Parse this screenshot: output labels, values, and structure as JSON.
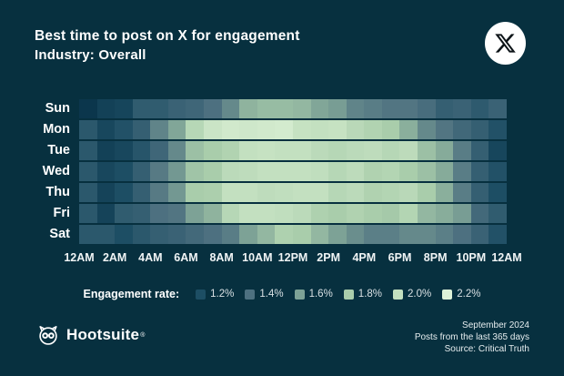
{
  "header": {
    "title": "Best time to post on X for engagement",
    "subtitle": "Industry: Overall",
    "badge_icon": "x-logo-icon"
  },
  "chart_data": {
    "type": "heatmap",
    "title": "Best time to post on X for engagement",
    "subtitle": "Industry: Overall",
    "unit": "engagement rate %",
    "rows": [
      "Sun",
      "Mon",
      "Tue",
      "Wed",
      "Thu",
      "Fri",
      "Sat"
    ],
    "x_tick_labels": [
      "12AM",
      "2AM",
      "4AM",
      "6AM",
      "8AM",
      "10AM",
      "12PM",
      "2PM",
      "4PM",
      "6PM",
      "8PM",
      "10PM",
      "12AM"
    ],
    "columns_per_row": 24,
    "values": [
      [
        1.02,
        1.1,
        1.13,
        1.28,
        1.28,
        1.32,
        1.34,
        1.4,
        1.5,
        1.68,
        1.72,
        1.72,
        1.7,
        1.62,
        1.58,
        1.48,
        1.45,
        1.42,
        1.42,
        1.38,
        1.3,
        1.32,
        1.27,
        1.32
      ],
      [
        1.26,
        1.15,
        1.22,
        1.3,
        1.48,
        1.62,
        1.9,
        2.05,
        2.1,
        2.08,
        2.1,
        2.12,
        2.02,
        2.0,
        2.02,
        1.92,
        1.86,
        1.8,
        1.66,
        1.5,
        1.42,
        1.35,
        1.3,
        1.22
      ],
      [
        1.26,
        1.1,
        1.15,
        1.24,
        1.34,
        1.5,
        1.74,
        1.8,
        1.86,
        2.0,
        2.02,
        2.0,
        2.0,
        1.94,
        1.9,
        1.94,
        1.96,
        1.9,
        1.95,
        1.74,
        1.64,
        1.45,
        1.3,
        1.14
      ],
      [
        1.26,
        1.15,
        1.2,
        1.3,
        1.44,
        1.56,
        1.76,
        1.8,
        1.94,
        1.96,
        2.0,
        2.0,
        2.0,
        1.98,
        1.9,
        1.95,
        1.85,
        1.88,
        1.8,
        1.74,
        1.64,
        1.45,
        1.3,
        1.22
      ],
      [
        1.26,
        1.12,
        1.2,
        1.3,
        1.44,
        1.56,
        1.8,
        1.82,
        2.0,
        2.0,
        1.96,
        1.98,
        2.0,
        2.0,
        1.9,
        1.94,
        1.85,
        1.88,
        1.92,
        1.8,
        1.66,
        1.45,
        1.3,
        1.2
      ],
      [
        1.26,
        1.12,
        1.28,
        1.3,
        1.4,
        1.42,
        1.6,
        1.68,
        1.9,
        2.0,
        2.0,
        1.98,
        1.94,
        1.84,
        1.8,
        1.85,
        1.8,
        1.78,
        1.88,
        1.7,
        1.65,
        1.58,
        1.36,
        1.28
      ],
      [
        1.26,
        1.26,
        1.2,
        1.26,
        1.3,
        1.32,
        1.36,
        1.4,
        1.45,
        1.6,
        1.7,
        1.84,
        1.8,
        1.7,
        1.6,
        1.52,
        1.46,
        1.46,
        1.5,
        1.5,
        1.46,
        1.4,
        1.32,
        1.22
      ]
    ],
    "colormap_stops": [
      {
        "value": 1.0,
        "color": "#093349"
      },
      {
        "value": 1.2,
        "color": "#1d4e64"
      },
      {
        "value": 1.4,
        "color": "#4d7080"
      },
      {
        "value": 1.6,
        "color": "#7da296"
      },
      {
        "value": 1.8,
        "color": "#a9cdab"
      },
      {
        "value": 2.0,
        "color": "#c3e0c0"
      },
      {
        "value": 2.2,
        "color": "#def2d8"
      }
    ],
    "legend": {
      "title": "Engagement rate:",
      "position": "bottom-center",
      "items": [
        {
          "label": "1.2%",
          "color": "#1d4e64"
        },
        {
          "label": "1.4%",
          "color": "#4d7080"
        },
        {
          "label": "1.6%",
          "color": "#7da296"
        },
        {
          "label": "1.8%",
          "color": "#a9cdab"
        },
        {
          "label": "2.0%",
          "color": "#c3e0c0"
        },
        {
          "label": "2.2%",
          "color": "#def2d8"
        }
      ]
    }
  },
  "footer": {
    "brand": "Hootsuite",
    "registered": "®",
    "brand_icon": "owl-icon",
    "date": "September 2024",
    "line2": "Posts from the last 365 days",
    "line3": "Source: Critical Truth"
  },
  "colors": {
    "background": "#07303f",
    "title_text": "#ffffff",
    "badge_background": "#ffffff",
    "badge_glyph": "#0d1418"
  }
}
